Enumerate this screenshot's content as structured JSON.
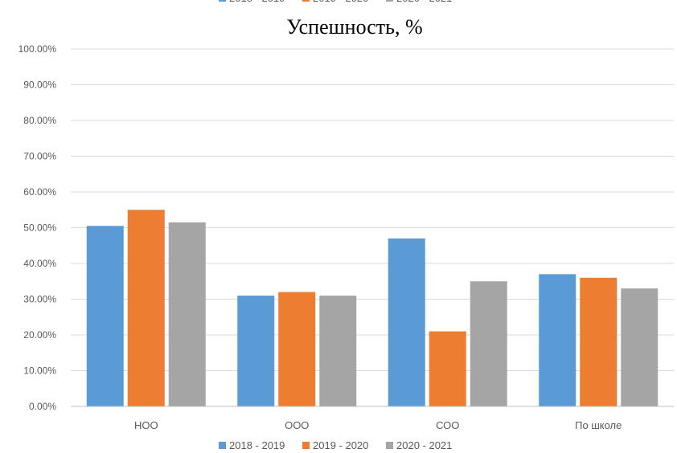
{
  "chart_data": {
    "type": "bar",
    "title": "Успешность, %",
    "categories": [
      "НОО",
      "ООО",
      "СОО",
      "По школе"
    ],
    "series": [
      {
        "name": "2018 - 2019",
        "color": "#5b9bd5",
        "values": [
          50.5,
          31.0,
          47.0,
          37.0
        ]
      },
      {
        "name": "2019 - 2020",
        "color": "#ed7d31",
        "values": [
          55.0,
          32.0,
          21.0,
          36.0
        ]
      },
      {
        "name": "2020 - 2021",
        "color": "#a5a5a5",
        "values": [
          51.5,
          31.0,
          35.0,
          33.0
        ]
      }
    ],
    "ylim": [
      0,
      100
    ],
    "yticks": [
      "0.00%",
      "10.00%",
      "20.00%",
      "30.00%",
      "40.00%",
      "50.00%",
      "60.00%",
      "70.00%",
      "80.00%",
      "90.00%",
      "100.00%"
    ],
    "grid": true,
    "legend_position": "bottom"
  }
}
